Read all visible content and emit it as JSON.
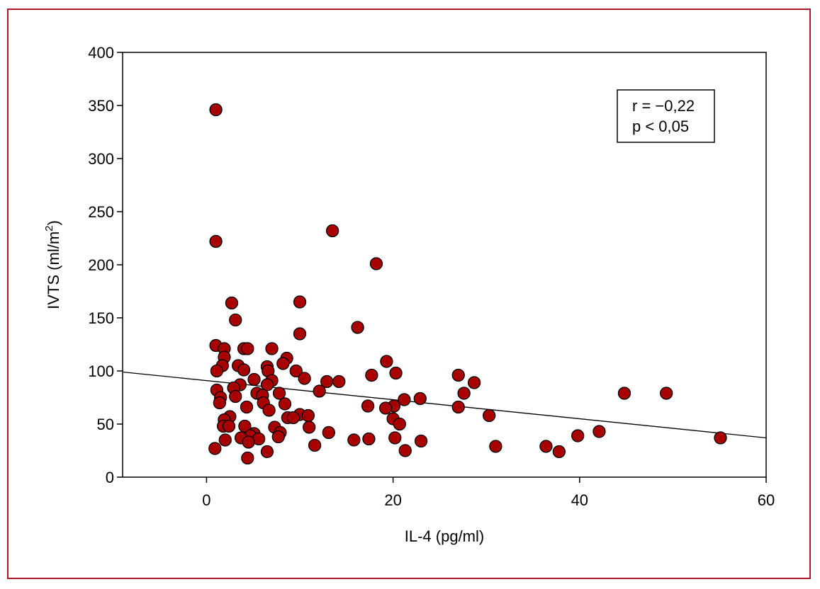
{
  "colors": {
    "frame": "#b0152a",
    "point_fill": "#a80000",
    "point_stroke": "#000000",
    "axis": "#000000"
  },
  "chart_data": {
    "type": "scatter",
    "title": "",
    "xlabel": "IL-4 (pg/ml)",
    "ylabel": "IVTS (ml/m",
    "ylabel_sup": "2",
    "ylabel_close": ")",
    "xlim": [
      -9,
      60
    ],
    "ylim": [
      0,
      400
    ],
    "xticks": [
      0,
      20,
      40,
      60
    ],
    "yticks": [
      0,
      50,
      100,
      150,
      200,
      250,
      300,
      350,
      400
    ],
    "grid": false,
    "annotation": [
      "r = −0,22",
      "p < 0,05"
    ],
    "annotation_position": "top-right",
    "regression_line": {
      "x": [
        -9,
        60
      ],
      "y": [
        99,
        37
      ]
    },
    "points": [
      [
        1,
        346
      ],
      [
        1,
        222
      ],
      [
        13.5,
        232
      ],
      [
        18.2,
        201
      ],
      [
        2.7,
        164
      ],
      [
        10,
        165
      ],
      [
        3.1,
        148
      ],
      [
        16.2,
        141
      ],
      [
        10,
        135
      ],
      [
        1,
        124
      ],
      [
        1.9,
        121
      ],
      [
        4,
        121
      ],
      [
        4.4,
        121
      ],
      [
        7,
        121
      ],
      [
        1.9,
        113
      ],
      [
        8.6,
        112
      ],
      [
        19.3,
        109
      ],
      [
        1.7,
        105
      ],
      [
        3.4,
        105
      ],
      [
        8.2,
        107
      ],
      [
        6.5,
        104
      ],
      [
        1.1,
        100
      ],
      [
        4,
        101
      ],
      [
        6.6,
        100
      ],
      [
        9.6,
        100
      ],
      [
        20.3,
        98
      ],
      [
        17.7,
        96
      ],
      [
        27,
        96
      ],
      [
        10.5,
        93
      ],
      [
        5.1,
        92
      ],
      [
        7,
        91
      ],
      [
        12.9,
        90
      ],
      [
        14.2,
        90
      ],
      [
        28.7,
        89
      ],
      [
        3.6,
        87
      ],
      [
        6.5,
        87
      ],
      [
        2.9,
        84
      ],
      [
        1.1,
        82
      ],
      [
        12.1,
        81
      ],
      [
        5.4,
        79
      ],
      [
        7.8,
        79
      ],
      [
        27.6,
        79
      ],
      [
        44.8,
        79
      ],
      [
        49.3,
        79
      ],
      [
        3.1,
        76
      ],
      [
        6,
        77
      ],
      [
        1.5,
        75
      ],
      [
        22.9,
        74
      ],
      [
        21.2,
        73
      ],
      [
        1.4,
        70
      ],
      [
        6.1,
        70
      ],
      [
        8.4,
        69
      ],
      [
        17.3,
        67
      ],
      [
        20.1,
        67
      ],
      [
        27,
        66
      ],
      [
        4.3,
        66
      ],
      [
        19.2,
        65
      ],
      [
        6.7,
        63
      ],
      [
        10,
        59
      ],
      [
        10.9,
        58
      ],
      [
        30.3,
        58
      ],
      [
        2.5,
        57
      ],
      [
        8.7,
        56
      ],
      [
        9.3,
        56
      ],
      [
        1.9,
        54
      ],
      [
        20,
        55
      ],
      [
        20.7,
        50
      ],
      [
        1.8,
        48
      ],
      [
        4.1,
        48
      ],
      [
        2.4,
        48
      ],
      [
        7.3,
        47
      ],
      [
        11,
        47
      ],
      [
        5.1,
        41
      ],
      [
        7.9,
        42
      ],
      [
        13.1,
        42
      ],
      [
        42.1,
        43
      ],
      [
        39.8,
        39
      ],
      [
        7.7,
        38
      ],
      [
        55.1,
        37
      ],
      [
        4.7,
        39
      ],
      [
        3.7,
        37
      ],
      [
        5.6,
        36
      ],
      [
        20.2,
        37
      ],
      [
        15.8,
        35
      ],
      [
        17.4,
        36
      ],
      [
        2,
        35
      ],
      [
        23,
        34
      ],
      [
        4.5,
        33
      ],
      [
        11.6,
        30
      ],
      [
        31,
        29
      ],
      [
        36.4,
        29
      ],
      [
        0.9,
        27
      ],
      [
        21.3,
        25
      ],
      [
        6.5,
        24
      ],
      [
        37.8,
        24
      ],
      [
        4.4,
        18
      ]
    ]
  }
}
